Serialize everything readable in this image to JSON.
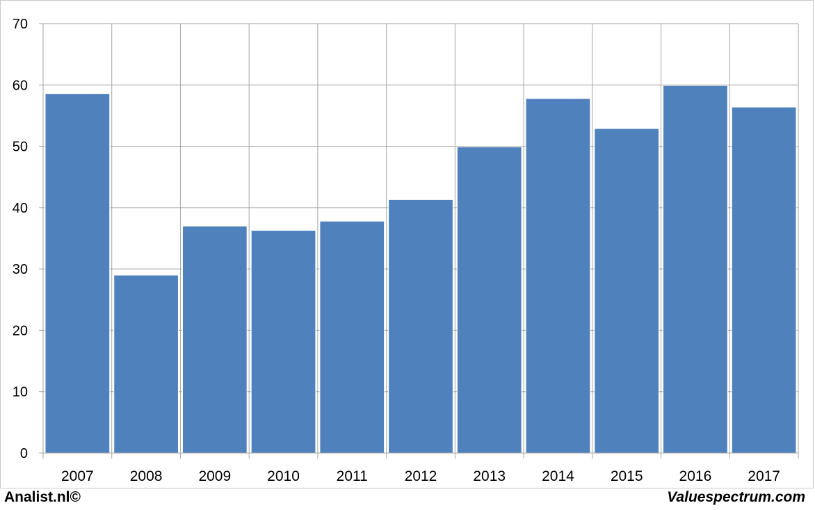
{
  "chart_data": {
    "type": "bar",
    "categories": [
      "2007",
      "2008",
      "2009",
      "2010",
      "2011",
      "2012",
      "2013",
      "2014",
      "2015",
      "2016",
      "2017"
    ],
    "values": [
      58.6,
      29.0,
      37.0,
      36.3,
      37.8,
      41.3,
      49.9,
      57.8,
      52.9,
      59.9,
      56.4
    ],
    "ylim": [
      0,
      70
    ],
    "yticks": [
      0,
      10,
      20,
      30,
      40,
      50,
      60,
      70
    ],
    "title": "",
    "xlabel": "",
    "ylabel": "",
    "grid": true,
    "bar_color": "#4f81bd",
    "grid_color": "#a6a6a6"
  },
  "footer": {
    "left": "Analist.nl©",
    "right": "Valuespectrum.com"
  }
}
